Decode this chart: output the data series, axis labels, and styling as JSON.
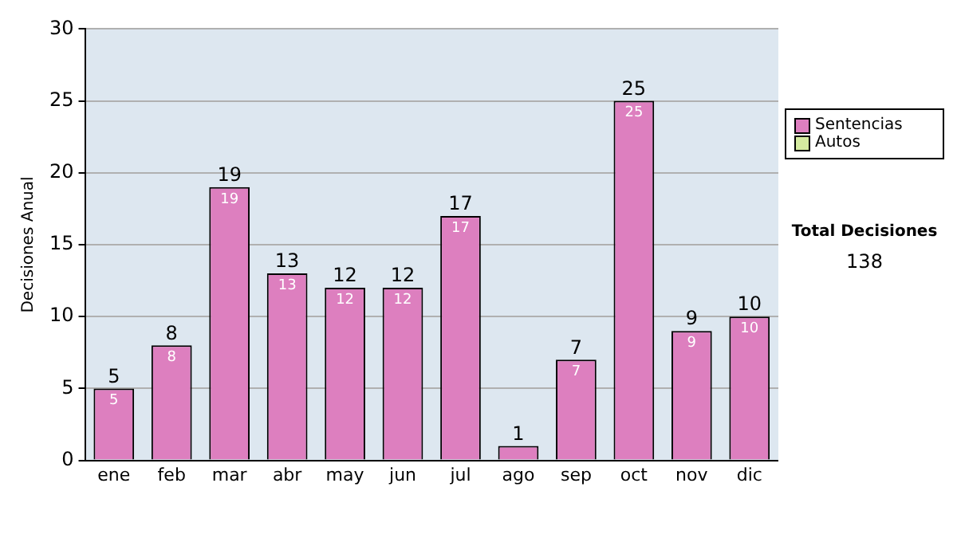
{
  "chart_data": {
    "type": "bar",
    "ylabel": "Decisiones Anual",
    "categories": [
      "ene",
      "feb",
      "mar",
      "abr",
      "may",
      "jun",
      "jul",
      "ago",
      "sep",
      "oct",
      "nov",
      "dic"
    ],
    "series": [
      {
        "name": "Sentencias",
        "color": "#dd7fbf",
        "values": [
          5,
          8,
          19,
          13,
          12,
          12,
          17,
          1,
          7,
          25,
          9,
          10
        ],
        "value_labels": [
          "5",
          "8",
          "19",
          "13",
          "12",
          "12",
          "17",
          null,
          "7",
          "25",
          "9",
          "10"
        ]
      },
      {
        "name": "Autos",
        "color": "#d4eaa0",
        "values": [
          0,
          0,
          0,
          0,
          0,
          0,
          0,
          0,
          0,
          0,
          0,
          0
        ]
      }
    ],
    "stacked": true,
    "totals": [
      "5",
      "8",
      "19",
      "13",
      "12",
      "12",
      "17",
      "1",
      "7",
      "25",
      "9",
      "10"
    ],
    "ylim": [
      0,
      30
    ],
    "yticks": [
      0,
      5,
      10,
      15,
      20,
      25,
      30
    ],
    "grid": "y",
    "legend": "right",
    "annotations": [
      "Total Decisiones",
      "138"
    ]
  }
}
